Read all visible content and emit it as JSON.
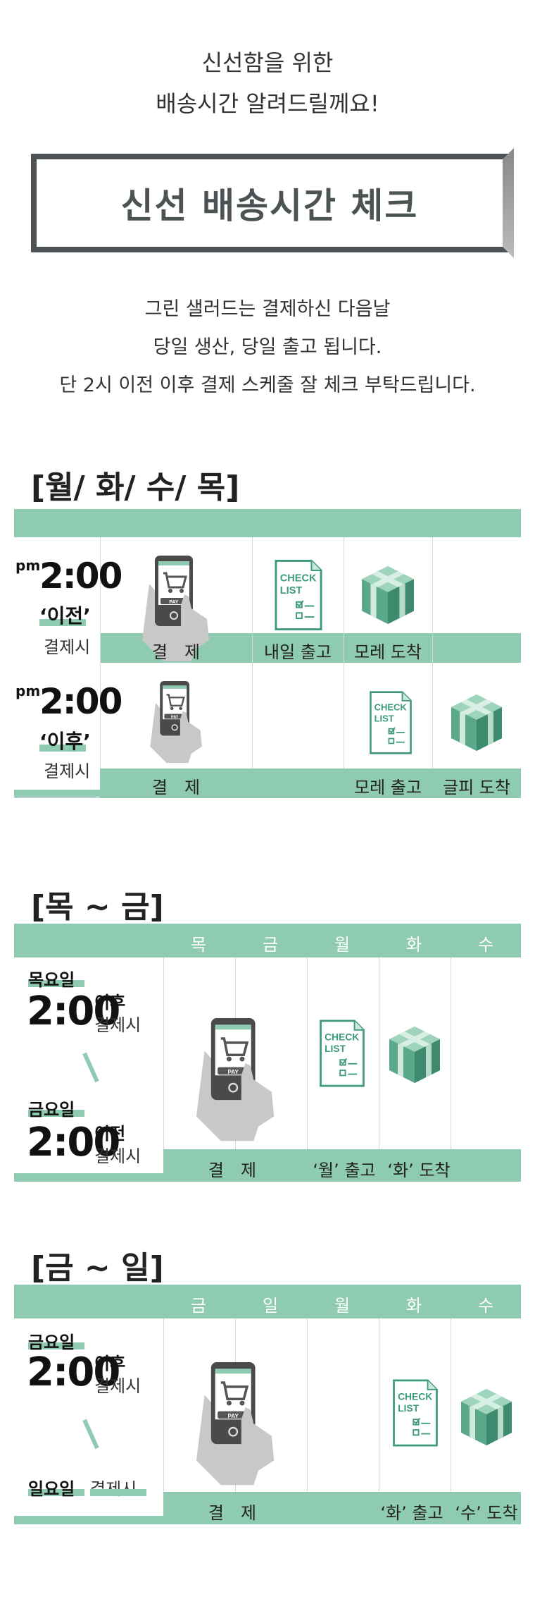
{
  "intro": {
    "line1": "신선함을 위한",
    "line2": "배송시간 알려드릴께요!"
  },
  "banner": {
    "title": "신선 배송시간 체크"
  },
  "description": {
    "line1": "그린 샐러드는 결제하신 다음날",
    "line2": "당일 생산, 당일 출고 됩니다.",
    "line3": "단 2시 이전 이후 결제 스케줄 잘 체크 부탁드립니다."
  },
  "section1": {
    "title": "[월/ 화/ 수/ 목]",
    "row1": {
      "pm": "pm",
      "time": "2:00",
      "qualifier": "‘이전’",
      "sub": "결제시",
      "labels": [
        "결　제",
        "내일 출고",
        "모레 도착"
      ]
    },
    "row2": {
      "pm": "pm",
      "time": "2:00",
      "qualifier": "‘이후’",
      "sub": "결제시",
      "labels": [
        "결　제",
        "모레 출고",
        "글피 도착"
      ]
    }
  },
  "section2": {
    "title": "[목 ~ 금]",
    "days": [
      "목",
      "금",
      "월",
      "화",
      "수"
    ],
    "block1": {
      "day": "목요일",
      "time": "2:00",
      "qualifier": "이후",
      "sub": "결제시"
    },
    "block2": {
      "day": "금요일",
      "time": "2:00",
      "qualifier": "이전",
      "sub": "결제시"
    },
    "labels": [
      "결　제",
      "‘월’ 출고",
      "‘화’ 도착"
    ]
  },
  "section3": {
    "title": "[금 ~ 일]",
    "days": [
      "금",
      "일",
      "월",
      "화",
      "수"
    ],
    "block1": {
      "day": "금요일",
      "time": "2:00",
      "qualifier": "이후",
      "sub": "결제시"
    },
    "block2": {
      "day": "일요일",
      "sub": "결제시"
    },
    "labels": [
      "결　제",
      "‘화’ 출고",
      "‘수’ 도착"
    ]
  },
  "icons": {
    "phone_text": "PAY",
    "check_text_1": "CHECK",
    "check_text_2": "LIST"
  },
  "colors": {
    "mint": "#8ecbb0",
    "dark": "#4c5354",
    "green": "#3d9a7a"
  }
}
